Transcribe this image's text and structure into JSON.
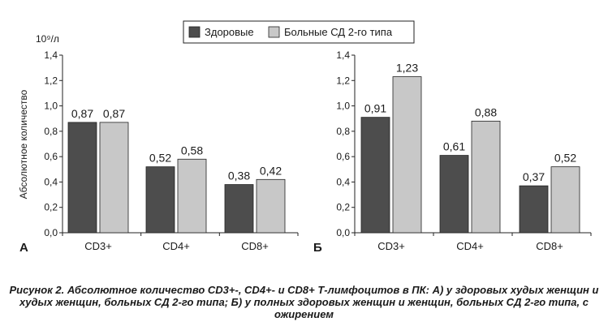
{
  "legend": {
    "series": [
      {
        "name": "Здоровые",
        "color": "#4d4d4d"
      },
      {
        "name": "Больные СД 2-го типа",
        "color": "#c8c8c8"
      }
    ]
  },
  "unit_label": "10⁹/л",
  "ylabel": "Абсолютное количество",
  "caption": "Рисунок 2. Абсолютное количество CD3+-, CD4+- и CD8+ Т-лимфоцитов в ПК: А) у здоровых худых женщин и худых женщин, больных СД 2-го типа; Б) у полных здоровых женщин и женщин, больных СД 2-го типа, с ожирением",
  "chart_data": [
    {
      "type": "bar",
      "panel_label": "А",
      "categories": [
        "CD3+",
        "CD4+",
        "CD8+"
      ],
      "series": [
        {
          "name": "Здоровые",
          "values": [
            0.87,
            0.52,
            0.38
          ],
          "labels": [
            "0,87",
            "0,52",
            "0,38"
          ]
        },
        {
          "name": "Больные СД 2-го типа",
          "values": [
            0.87,
            0.58,
            0.42
          ],
          "labels": [
            "0,87",
            "0,58",
            "0,42"
          ]
        }
      ],
      "ylim": [
        0,
        1.4
      ],
      "yticks": [
        "0,0",
        "0,2",
        "0,4",
        "0,6",
        "0,8",
        "1,0",
        "1,2",
        "1,4"
      ],
      "ylabel": "Абсолютное количество",
      "grid": false
    },
    {
      "type": "bar",
      "panel_label": "Б",
      "categories": [
        "CD3+",
        "CD4+",
        "CD8+"
      ],
      "series": [
        {
          "name": "Здоровые",
          "values": [
            0.91,
            0.61,
            0.37
          ],
          "labels": [
            "0,91",
            "0,61",
            "0,37"
          ]
        },
        {
          "name": "Больные СД 2-го типа",
          "values": [
            1.23,
            0.88,
            0.52
          ],
          "labels": [
            "1,23",
            "0,88",
            "0,52"
          ]
        }
      ],
      "ylim": [
        0,
        1.4
      ],
      "yticks": [
        "0,0",
        "0,2",
        "0,4",
        "0,6",
        "0,8",
        "1,0",
        "1,2",
        "1,4"
      ],
      "grid": false
    }
  ]
}
